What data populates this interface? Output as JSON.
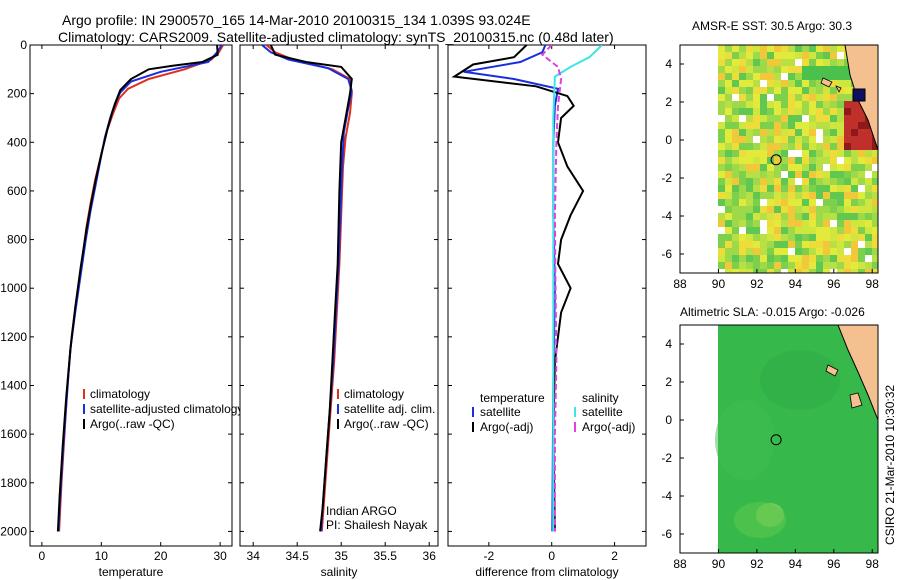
{
  "title_line1": "Argo profile: IN 2900570_165 14-Mar-2010 20100315_134 1.039S 93.024E",
  "title_line2": "Climatology: CARS2009. Satellite-adjusted climatology: synTS_20100315.nc (0.48d later)",
  "side_label": "CSIRO 21-Mar-2010 10:30:32",
  "colors": {
    "climatology": "#e03020",
    "satellite": "#1a2ee0",
    "argo": "#000000",
    "sal_sat": "#3ce6e6",
    "sal_argo": "#e040e0"
  },
  "chart_data": [
    {
      "type": "line",
      "id": "temperature",
      "xlabel": "temperature",
      "ylabel": "",
      "xlim": [
        -2,
        32
      ],
      "ylim": [
        2060,
        0
      ],
      "xticks": [
        0,
        10,
        20,
        30
      ],
      "yticks": [
        0,
        200,
        400,
        600,
        800,
        1000,
        1200,
        1400,
        1600,
        1800,
        2000
      ],
      "legend": [
        "climatology",
        "satellite-adjusted climatology",
        "Argo(..raw -QC)"
      ],
      "series": [
        {
          "name": "climatology",
          "color_key": "climatology",
          "points": [
            [
              30.5,
              0
            ],
            [
              29.8,
              30
            ],
            [
              28.5,
              60
            ],
            [
              24,
              100
            ],
            [
              18,
              140
            ],
            [
              14.5,
              180
            ],
            [
              13,
              220
            ],
            [
              12,
              280
            ],
            [
              11,
              350
            ],
            [
              10,
              450
            ],
            [
              9,
              550
            ],
            [
              8.2,
              650
            ],
            [
              7.5,
              750
            ],
            [
              6.7,
              900
            ],
            [
              5.8,
              1050
            ],
            [
              5,
              1200
            ],
            [
              4.3,
              1400
            ],
            [
              3.8,
              1600
            ],
            [
              3.3,
              1800
            ],
            [
              2.9,
              2000
            ]
          ]
        },
        {
          "name": "satellite-adjusted climatology",
          "color_key": "satellite",
          "points": [
            [
              30.3,
              0
            ],
            [
              29.5,
              30
            ],
            [
              28,
              70
            ],
            [
              20,
              110
            ],
            [
              15,
              150
            ],
            [
              13.2,
              195
            ],
            [
              12.3,
              240
            ],
            [
              11.5,
              300
            ],
            [
              10.6,
              380
            ],
            [
              9.8,
              480
            ],
            [
              9,
              580
            ],
            [
              8.2,
              680
            ],
            [
              7.4,
              800
            ],
            [
              6.5,
              950
            ],
            [
              5.6,
              1100
            ],
            [
              4.8,
              1250
            ],
            [
              4.2,
              1450
            ],
            [
              3.6,
              1650
            ],
            [
              3.1,
              1850
            ],
            [
              2.8,
              2000
            ]
          ]
        },
        {
          "name": "Argo(..raw -QC)",
          "color_key": "argo",
          "points": [
            [
              29.5,
              0
            ],
            [
              29.6,
              40
            ],
            [
              27,
              70
            ],
            [
              22,
              85
            ],
            [
              18,
              100
            ],
            [
              15,
              140
            ],
            [
              13.2,
              185
            ],
            [
              12.5,
              230
            ],
            [
              11.8,
              280
            ],
            [
              11,
              350
            ],
            [
              10,
              450
            ],
            [
              9,
              560
            ],
            [
              8.3,
              650
            ],
            [
              7.5,
              760
            ],
            [
              6.5,
              920
            ],
            [
              5.6,
              1080
            ],
            [
              4.8,
              1250
            ],
            [
              4.1,
              1450
            ],
            [
              3.5,
              1650
            ],
            [
              3,
              1850
            ],
            [
              2.7,
              2000
            ]
          ]
        }
      ]
    },
    {
      "type": "line",
      "id": "salinity",
      "xlabel": "salinity",
      "ylabel": "",
      "xlim": [
        33.85,
        36.1
      ],
      "ylim": [
        2060,
        0
      ],
      "xticks": [
        34,
        34.5,
        35,
        35.5,
        36
      ],
      "legend": [
        "climatology",
        "satellite adj. clim.",
        "Argo(..raw -QC)"
      ],
      "annotation": [
        "Indian ARGO",
        "PI: Shailesh Nayak"
      ],
      "series": [
        {
          "name": "climatology",
          "color_key": "climatology",
          "points": [
            [
              34.15,
              0
            ],
            [
              34.25,
              30
            ],
            [
              34.45,
              60
            ],
            [
              34.9,
              100
            ],
            [
              35.1,
              140
            ],
            [
              35.12,
              200
            ],
            [
              35.1,
              280
            ],
            [
              35.05,
              380
            ],
            [
              35.02,
              500
            ],
            [
              35,
              700
            ],
            [
              34.98,
              900
            ],
            [
              34.95,
              1100
            ],
            [
              34.92,
              1300
            ],
            [
              34.88,
              1500
            ],
            [
              34.84,
              1700
            ],
            [
              34.8,
              1900
            ],
            [
              34.78,
              2000
            ]
          ]
        },
        {
          "name": "satellite adj. clim.",
          "color_key": "satellite",
          "points": [
            [
              34.1,
              0
            ],
            [
              34.2,
              30
            ],
            [
              34.4,
              60
            ],
            [
              34.85,
              95
            ],
            [
              35.08,
              140
            ],
            [
              35.12,
              190
            ],
            [
              35.08,
              260
            ],
            [
              35.03,
              360
            ],
            [
              35.01,
              500
            ],
            [
              34.99,
              700
            ],
            [
              34.97,
              900
            ],
            [
              34.94,
              1100
            ],
            [
              34.91,
              1300
            ],
            [
              34.87,
              1500
            ],
            [
              34.83,
              1700
            ],
            [
              34.79,
              1900
            ],
            [
              34.77,
              2000
            ]
          ]
        },
        {
          "name": "Argo(..raw -QC)",
          "color_key": "argo",
          "points": [
            [
              34.2,
              0
            ],
            [
              34.25,
              40
            ],
            [
              34.6,
              70
            ],
            [
              35,
              90
            ],
            [
              35.12,
              140
            ],
            [
              35.1,
              200
            ],
            [
              35.05,
              300
            ],
            [
              35,
              400
            ],
            [
              34.98,
              600
            ],
            [
              34.96,
              900
            ],
            [
              34.93,
              1100
            ],
            [
              34.9,
              1300
            ],
            [
              34.87,
              1500
            ],
            [
              34.83,
              1700
            ],
            [
              34.79,
              1900
            ],
            [
              34.76,
              2000
            ]
          ]
        }
      ]
    },
    {
      "type": "line",
      "id": "difference",
      "xlabel": "difference from climatology",
      "ylabel": "",
      "xlim": [
        -3.3,
        3.0
      ],
      "ylim": [
        2060,
        0
      ],
      "xticks": [
        -2,
        0,
        2
      ],
      "legend_left_title": "temperature",
      "legend_right_title": "salinity",
      "legend_left": [
        "satellite",
        "Argo(-adj)"
      ],
      "legend_right": [
        "satellite",
        "Argo(-adj)"
      ],
      "series": [
        {
          "name": "temperature satellite",
          "color_key": "satellite",
          "points": [
            [
              -0.2,
              0
            ],
            [
              -0.3,
              30
            ],
            [
              -1,
              70
            ],
            [
              -2.8,
              110
            ],
            [
              -1.2,
              140
            ],
            [
              0.2,
              180
            ],
            [
              0.1,
              250
            ],
            [
              0.05,
              400
            ],
            [
              0.05,
              700
            ],
            [
              0.1,
              1000
            ],
            [
              0.05,
              1400
            ],
            [
              0.02,
              2000
            ]
          ]
        },
        {
          "name": "temperature Argo(-adj)",
          "color_key": "argo",
          "points": [
            [
              -0.8,
              0
            ],
            [
              -1.2,
              50
            ],
            [
              -2.5,
              80
            ],
            [
              -3.1,
              130
            ],
            [
              -0.5,
              170
            ],
            [
              0.5,
              210
            ],
            [
              0.7,
              250
            ],
            [
              0.3,
              300
            ],
            [
              0.2,
              400
            ],
            [
              0.5,
              500
            ],
            [
              1,
              600
            ],
            [
              0.6,
              700
            ],
            [
              0.3,
              800
            ],
            [
              0.2,
              900
            ],
            [
              0.6,
              1000
            ],
            [
              0.3,
              1100
            ],
            [
              0.1,
              1300
            ],
            [
              0.05,
              1600
            ],
            [
              0.1,
              2000
            ]
          ]
        },
        {
          "name": "salinity satellite",
          "color_key": "sal_sat",
          "points": [
            [
              1.6,
              0
            ],
            [
              1.2,
              50
            ],
            [
              0.6,
              90
            ],
            [
              0.1,
              130
            ],
            [
              0.05,
              300
            ],
            [
              0.05,
              700
            ],
            [
              0.05,
              1100
            ],
            [
              0.05,
              1500
            ],
            [
              0.05,
              2000
            ]
          ]
        },
        {
          "name": "salinity Argo(-adj)",
          "color_key": "sal_argo",
          "points": [
            [
              0,
              0
            ],
            [
              -0.3,
              40
            ],
            [
              0.2,
              90
            ],
            [
              0.3,
              140
            ],
            [
              0.2,
              250
            ],
            [
              0.15,
              400
            ],
            [
              0.1,
              700
            ],
            [
              0.12,
              1000
            ],
            [
              0.15,
              1300
            ],
            [
              0.1,
              1600
            ],
            [
              0.1,
              2000
            ]
          ]
        }
      ]
    },
    {
      "type": "heatmap",
      "id": "sst_map",
      "title": "AMSR-E SST: 30.5 Argo: 30.3",
      "xlim": [
        88,
        98.3
      ],
      "ylim": [
        -7,
        5
      ],
      "xticks": [
        88,
        90,
        92,
        94,
        96,
        98
      ],
      "yticks": [
        -6,
        -4,
        -2,
        0,
        2,
        4
      ],
      "argo_position": [
        93.0,
        -1.04
      ]
    },
    {
      "type": "heatmap",
      "id": "sla_map",
      "title": "Altimetric SLA: -0.015 Argo: -0.026",
      "xlim": [
        88,
        98.3
      ],
      "ylim": [
        -7,
        5
      ],
      "xticks": [
        88,
        90,
        92,
        94,
        96,
        98
      ],
      "yticks": [
        -6,
        -4,
        -2,
        0,
        2,
        4
      ],
      "argo_position": [
        93.0,
        -1.04
      ]
    }
  ]
}
